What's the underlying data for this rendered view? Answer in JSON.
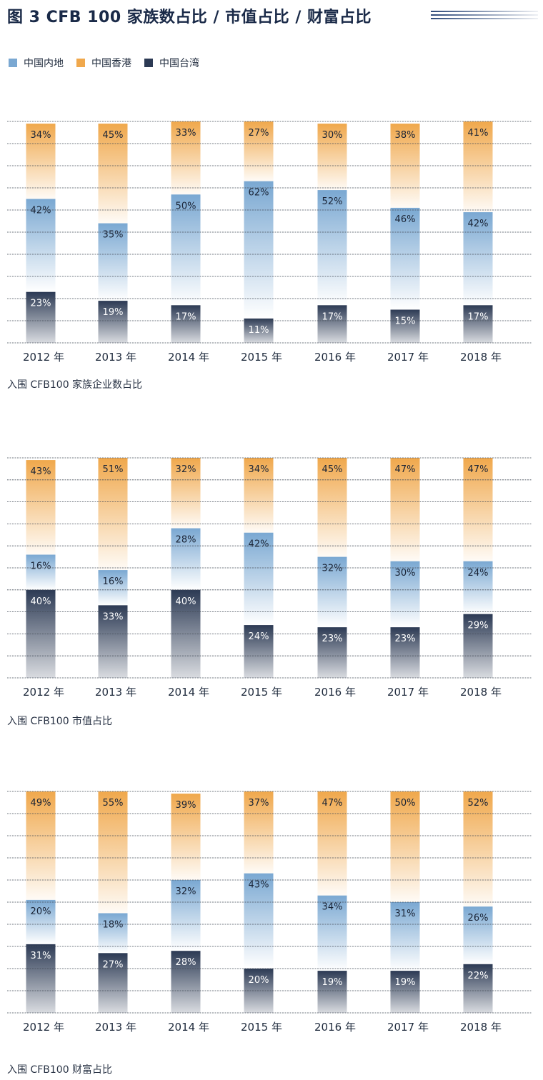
{
  "title": "图 3  CFB 100 家族数占比 / 市值占比 / 财富占比",
  "legend": [
    {
      "label": "中国内地",
      "color": "#7aa8d2"
    },
    {
      "label": "中国香港",
      "color": "#f0a84c"
    },
    {
      "label": "中国台湾",
      "color": "#2c3a54"
    }
  ],
  "colors": {
    "mainland": "#7aa8d2",
    "hongkong": "#f0a84c",
    "taiwan": "#2c3a54",
    "grid": "#444c58",
    "title": "#1a2a48"
  },
  "chart_data": [
    {
      "type": "bar",
      "title": "入围 CFB100 家族企业数占比",
      "categories": [
        "2012 年",
        "2013 年",
        "2014 年",
        "2015 年",
        "2016 年",
        "2017 年",
        "2018 年"
      ],
      "ylim": [
        0,
        100
      ],
      "series": [
        {
          "name": "中国内地",
          "values": [
            42,
            35,
            50,
            62,
            52,
            46,
            42
          ],
          "labels": [
            "42%",
            "35%",
            "50%",
            "62%",
            "52%",
            "46%",
            "42%"
          ]
        },
        {
          "name": "中国香港",
          "values": [
            34,
            45,
            33,
            27,
            30,
            38,
            41
          ],
          "labels": [
            "34%",
            "45%",
            "33%",
            "27%",
            "30%",
            "38%",
            "41%"
          ]
        },
        {
          "name": "中国台湾",
          "values": [
            23,
            19,
            17,
            11,
            17,
            15,
            17
          ],
          "labels": [
            "23%",
            "19%",
            "17%",
            "11%",
            "17%",
            "15%",
            "17%"
          ]
        }
      ]
    },
    {
      "type": "bar",
      "title": "入围 CFB100 市值占比",
      "categories": [
        "2012 年",
        "2013 年",
        "2014 年",
        "2015 年",
        "2016 年",
        "2017 年",
        "2018 年"
      ],
      "ylim": [
        0,
        100
      ],
      "series": [
        {
          "name": "中国内地",
          "values": [
            16,
            16,
            28,
            42,
            32,
            30,
            24
          ],
          "labels": [
            "16%",
            "16%",
            "28%",
            "42%",
            "32%",
            "30%",
            "24%"
          ]
        },
        {
          "name": "中国香港",
          "values": [
            43,
            51,
            32,
            34,
            45,
            47,
            47
          ],
          "labels": [
            "43%",
            "51%",
            "32%",
            "34%",
            "45%",
            "47%",
            "47%"
          ]
        },
        {
          "name": "中国台湾",
          "values": [
            40,
            33,
            40,
            24,
            23,
            23,
            29
          ],
          "labels": [
            "40%",
            "33%",
            "40%",
            "24%",
            "23%",
            "23%",
            "29%"
          ]
        }
      ]
    },
    {
      "type": "bar",
      "title": "入围 CFB100 财富占比",
      "categories": [
        "2012 年",
        "2013 年",
        "2014 年",
        "2015 年",
        "2016 年",
        "2017 年",
        "2018 年"
      ],
      "ylim": [
        0,
        100
      ],
      "series": [
        {
          "name": "中国内地",
          "values": [
            20,
            18,
            32,
            43,
            34,
            31,
            26
          ],
          "labels": [
            "20%",
            "18%",
            "32%",
            "43%",
            "34%",
            "31%",
            "26%"
          ]
        },
        {
          "name": "中国香港",
          "values": [
            49,
            55,
            39,
            37,
            47,
            50,
            52
          ],
          "labels": [
            "49%",
            "55%",
            "39%",
            "37%",
            "47%",
            "50%",
            "52%"
          ]
        },
        {
          "name": "中国台湾",
          "values": [
            31,
            27,
            28,
            20,
            19,
            19,
            22
          ],
          "labels": [
            "31%",
            "27%",
            "28%",
            "20%",
            "19%",
            "19%",
            "22%"
          ]
        }
      ]
    }
  ]
}
